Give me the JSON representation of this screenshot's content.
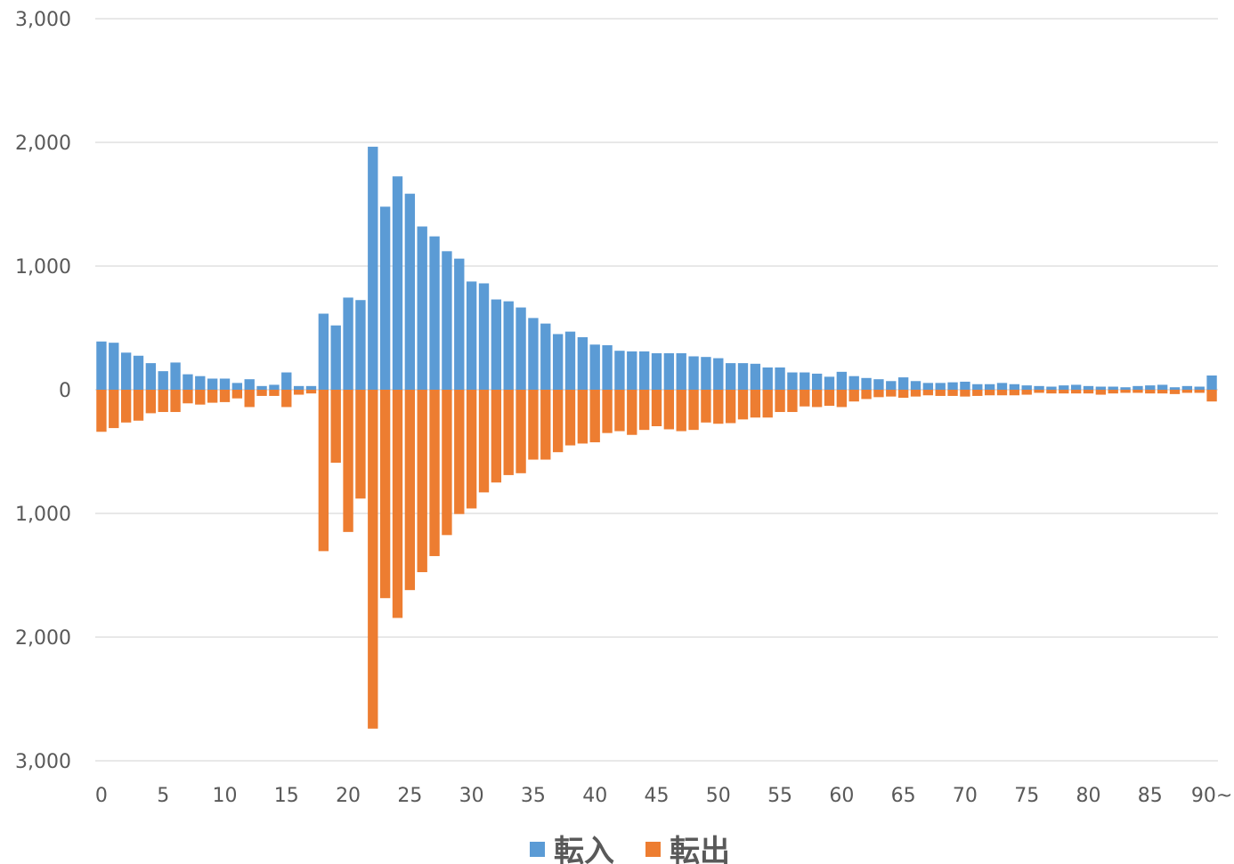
{
  "chart_data": {
    "type": "bar",
    "subtype": "diverging",
    "title": "",
    "xlabel": "",
    "ylabel": "",
    "categories": [
      "0",
      "1",
      "2",
      "3",
      "4",
      "5",
      "6",
      "7",
      "8",
      "9",
      "10",
      "11",
      "12",
      "13",
      "14",
      "15",
      "16",
      "17",
      "18",
      "19",
      "20",
      "21",
      "22",
      "23",
      "24",
      "25",
      "26",
      "27",
      "28",
      "29",
      "30",
      "31",
      "32",
      "33",
      "34",
      "35",
      "36",
      "37",
      "38",
      "39",
      "40",
      "41",
      "42",
      "43",
      "44",
      "45",
      "46",
      "47",
      "48",
      "49",
      "50",
      "51",
      "52",
      "53",
      "54",
      "55",
      "56",
      "57",
      "58",
      "59",
      "60",
      "61",
      "62",
      "63",
      "64",
      "65",
      "66",
      "67",
      "68",
      "69",
      "70",
      "71",
      "72",
      "73",
      "74",
      "75",
      "76",
      "77",
      "78",
      "79",
      "80",
      "81",
      "82",
      "83",
      "84",
      "85",
      "86",
      "87",
      "88",
      "89",
      "90~"
    ],
    "x_tick_labels": [
      "0",
      "5",
      "10",
      "15",
      "20",
      "25",
      "30",
      "35",
      "40",
      "45",
      "50",
      "55",
      "60",
      "65",
      "70",
      "75",
      "80",
      "85",
      "90~"
    ],
    "ylim": [
      -3000,
      3000
    ],
    "y_ticks": [
      {
        "value": 3000,
        "label": "3,000"
      },
      {
        "value": 2000,
        "label": "2,000"
      },
      {
        "value": 1000,
        "label": "1,000"
      },
      {
        "value": 0,
        "label": "0"
      },
      {
        "value": -1000,
        "label": "1,000"
      },
      {
        "value": -2000,
        "label": "2,000"
      },
      {
        "value": -3000,
        "label": "3,000"
      }
    ],
    "grid": true,
    "legend_position": "bottom",
    "series": [
      {
        "name": "転入",
        "color": "#5B9BD5",
        "values": [
          390,
          380,
          300,
          275,
          215,
          150,
          220,
          125,
          110,
          90,
          90,
          55,
          85,
          30,
          40,
          140,
          30,
          30,
          615,
          520,
          745,
          725,
          1965,
          1480,
          1725,
          1585,
          1320,
          1240,
          1120,
          1060,
          875,
          860,
          730,
          715,
          665,
          580,
          535,
          450,
          470,
          425,
          365,
          360,
          315,
          310,
          310,
          295,
          295,
          295,
          270,
          265,
          255,
          215,
          215,
          210,
          180,
          180,
          140,
          140,
          130,
          105,
          145,
          110,
          95,
          85,
          70,
          100,
          70,
          55,
          55,
          60,
          65,
          45,
          45,
          55,
          45,
          35,
          30,
          25,
          35,
          40,
          30,
          25,
          25,
          20,
          30,
          35,
          40,
          20,
          30,
          25,
          115
        ]
      },
      {
        "name": "転出",
        "color": "#ED7D31",
        "values": [
          -340,
          -310,
          -265,
          -250,
          -190,
          -180,
          -180,
          -110,
          -120,
          -105,
          -100,
          -70,
          -140,
          -50,
          -50,
          -140,
          -40,
          -30,
          -1305,
          -590,
          -1150,
          -880,
          -2740,
          -1685,
          -1845,
          -1620,
          -1475,
          -1345,
          -1175,
          -1005,
          -960,
          -830,
          -750,
          -690,
          -675,
          -565,
          -565,
          -505,
          -450,
          -435,
          -425,
          -350,
          -335,
          -365,
          -325,
          -295,
          -320,
          -335,
          -325,
          -265,
          -275,
          -270,
          -240,
          -225,
          -225,
          -180,
          -180,
          -135,
          -140,
          -130,
          -140,
          -95,
          -75,
          -60,
          -55,
          -65,
          -55,
          -45,
          -50,
          -50,
          -55,
          -50,
          -45,
          -45,
          -45,
          -40,
          -25,
          -30,
          -30,
          -30,
          -30,
          -40,
          -30,
          -25,
          -25,
          -30,
          -30,
          -35,
          -25,
          -25,
          -95
        ]
      }
    ]
  }
}
